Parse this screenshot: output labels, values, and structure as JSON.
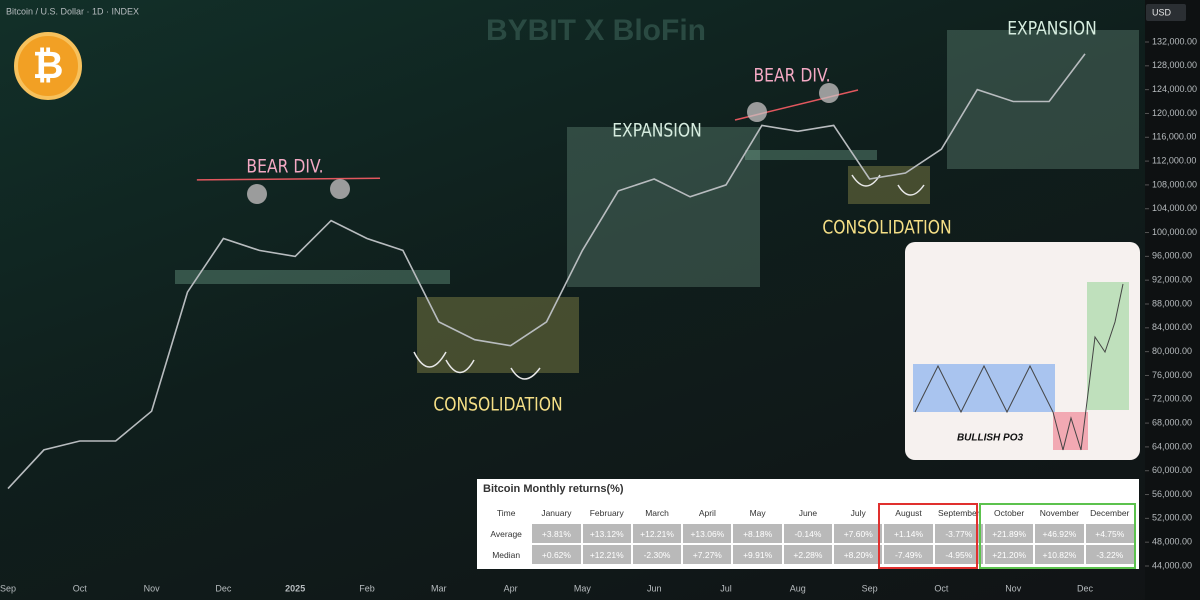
{
  "header": {
    "symbol": "Bitcoin / U.S. Dollar · 1D · INDEX",
    "watermark": "BYBIT X BloFin",
    "currency": "USD",
    "logo": "₿"
  },
  "chart_data": {
    "type": "line",
    "categories": [
      "Sep",
      null,
      "Oct",
      null,
      "Nov",
      null,
      "Dec",
      null,
      "2025",
      null,
      "Feb",
      null,
      "Mar",
      null,
      "Apr",
      null,
      "May",
      null,
      "Jun",
      null,
      "Jul",
      null,
      "Aug",
      null,
      "Sep",
      null,
      "Oct",
      null,
      "Nov",
      null,
      "Dec"
    ],
    "series": [
      {
        "name": "Bitcoin",
        "color": "#b8bcbf",
        "values": [
          57000,
          63500,
          65000,
          65000,
          70000,
          90000,
          99000,
          97000,
          96000,
          102000,
          99000,
          97000,
          85000,
          82000,
          81000,
          85000,
          97000,
          107000,
          109000,
          106000,
          108000,
          118000,
          117000,
          118000,
          109000,
          110000,
          114000,
          124000,
          122000,
          122000,
          130000
        ]
      }
    ],
    "ylim": [
      44000,
      132000
    ],
    "yticks": [
      {
        "value": 44000,
        "label": "44,000.00"
      },
      {
        "value": 48000,
        "label": "48,000.00"
      },
      {
        "value": 52000,
        "label": "52,000.00"
      },
      {
        "value": 56000,
        "label": "56,000.00"
      },
      {
        "value": 60000,
        "label": "60,000.00"
      },
      {
        "value": 64000,
        "label": "64,000.00"
      },
      {
        "value": 68000,
        "label": "68,000.00"
      },
      {
        "value": 72000,
        "label": "72,000.00"
      },
      {
        "value": 76000,
        "label": "76,000.00"
      },
      {
        "value": 80000,
        "label": "80,000.00"
      },
      {
        "value": 84000,
        "label": "84,000.00"
      },
      {
        "value": 88000,
        "label": "88,000.00"
      },
      {
        "value": 92000,
        "label": "92,000.00"
      },
      {
        "value": 96000,
        "label": "96,000.00"
      },
      {
        "value": 100000,
        "label": "100,000.00"
      },
      {
        "value": 104000,
        "label": "104,000.00"
      },
      {
        "value": 108000,
        "label": "108,000.00"
      },
      {
        "value": 112000,
        "label": "112,000.00"
      },
      {
        "value": 116000,
        "label": "116,000.00"
      },
      {
        "value": 120000,
        "label": "120,000.00"
      },
      {
        "value": 124000,
        "label": "124,000.00"
      },
      {
        "value": 128000,
        "label": "128,000.00"
      },
      {
        "value": 132000,
        "label": "132,000.00"
      }
    ],
    "grid": false,
    "annotations": [
      "BEAR DIV.",
      "CONSOLIDATION",
      "EXPANSION",
      "BEAR DIV.",
      "CONSOLIDATION",
      "EXPANSION"
    ]
  },
  "inset": {
    "label": "BULLISH PO3"
  },
  "table": {
    "title": "Bitcoin Monthly returns(%)",
    "header": [
      "Time",
      "January",
      "February",
      "March",
      "April",
      "May",
      "June",
      "July",
      "August",
      "September",
      "October",
      "November",
      "December"
    ],
    "rows": [
      [
        "Average",
        "+3.81%",
        "+13.12%",
        "+12.21%",
        "+13.06%",
        "+8.18%",
        "-0.14%",
        "+7.60%",
        "+1.14%",
        "-3.77%",
        "+21.89%",
        "+46.92%",
        "+4.75%"
      ],
      [
        "Median",
        "+0.62%",
        "+12.21%",
        "-2.30%",
        "+7.27%",
        "+9.91%",
        "+2.28%",
        "+8.20%",
        "-7.49%",
        "-4.95%",
        "+21.20%",
        "+10.82%",
        "-3.22%"
      ]
    ]
  }
}
